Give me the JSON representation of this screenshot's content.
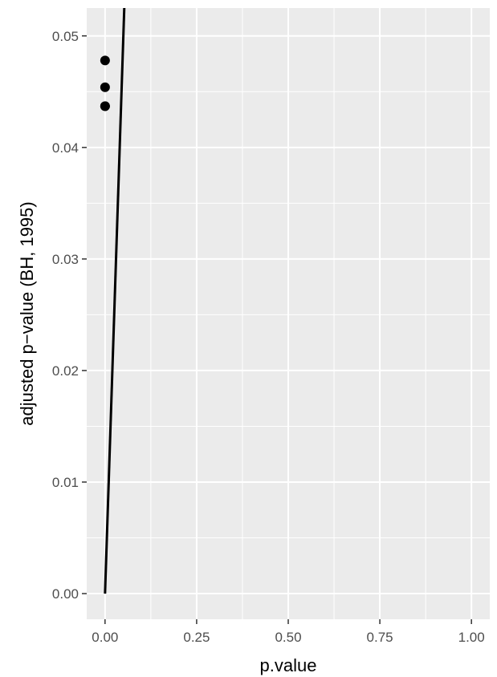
{
  "chart_data": {
    "type": "scatter",
    "title": "",
    "xlabel": "p.value",
    "ylabel": "adjusted p−value (BH, 1995)",
    "xlim": [
      -0.05,
      1.05
    ],
    "ylim": [
      -0.0023,
      0.0525
    ],
    "x_ticks": [
      0,
      0.25,
      0.5,
      0.75,
      1
    ],
    "x_tick_labels": [
      "0.00",
      "0.25",
      "0.50",
      "0.75",
      "1.00"
    ],
    "y_ticks": [
      0,
      0.01,
      0.02,
      0.03,
      0.04,
      0.05
    ],
    "y_tick_labels": [
      "0.00",
      "0.01",
      "0.02",
      "0.03",
      "0.04",
      "0.05"
    ],
    "grid": true,
    "points": [
      {
        "x": 0.0001,
        "y": 0.0478
      },
      {
        "x": 0.0001,
        "y": 0.0454
      },
      {
        "x": 0.0001,
        "y": 0.0437
      },
      {
        "x": 0.00015,
        "y": 0.0437
      }
    ],
    "reference_line": {
      "slope": 1,
      "intercept": 0
    },
    "colors": {
      "panel_background": "#ebebeb",
      "grid": "#ffffff",
      "points": "#000000",
      "line": "#000000",
      "tick_text": "#4d4d4d",
      "axis_title": "#000000"
    }
  }
}
